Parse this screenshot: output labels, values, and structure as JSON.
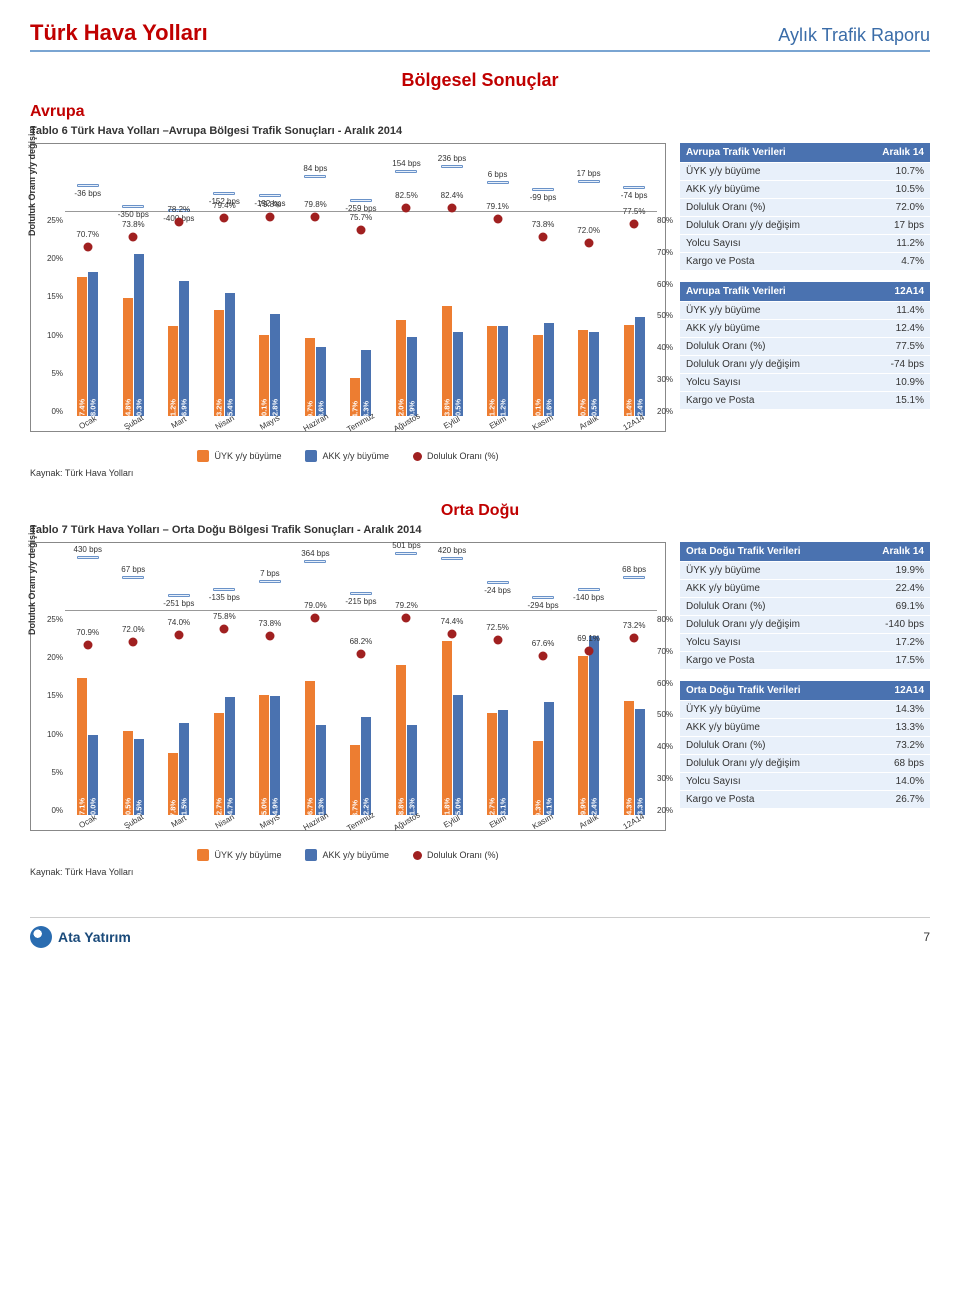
{
  "header": {
    "company": "Türk Hava Yolları",
    "report": "Aylık Trafik Raporu"
  },
  "section_title": "Bölgesel Sonuçlar",
  "source_note": "Kaynak: Türk Hava Yolları",
  "y_axis_label": "Doluluk Oranı\ny/y değişim",
  "left_ticks": [
    "25%",
    "20%",
    "15%",
    "10%",
    "5%",
    "0%"
  ],
  "right_ticks": [
    "80%",
    "70%",
    "60%",
    "50%",
    "40%",
    "30%",
    "20%"
  ],
  "months": [
    "Ocak",
    "Şubat",
    "Mart",
    "Nisan",
    "Mayıs",
    "Haziran",
    "Temmuz",
    "Ağustos",
    "Eylül",
    "Ekim",
    "Kasım",
    "Aralık",
    "12A14"
  ],
  "legend": {
    "uyk": {
      "label": "ÜYK y/y büyüme",
      "color": "#ed7d31"
    },
    "akk": {
      "label": "AKK y/y büyüme",
      "color": "#4a72b0"
    },
    "doluluk": {
      "label": "Doluluk Oranı (%)",
      "color": "#a02020"
    }
  },
  "left_axis": {
    "min": 0,
    "max": 25,
    "step": 5
  },
  "right_axis": {
    "min": 20,
    "max": 80,
    "step": 10
  },
  "bar_colors": {
    "uyk": "#ed7d31",
    "akk": "#4a72b0"
  },
  "dot_color": "#a02020",
  "bps_mark_color": "#6a92c8",
  "avrupa": {
    "region_title": "Avrupa",
    "table_title": "Tablo 6 Türk Hava Yolları –Avrupa Bölgesi Trafik Sonuçları - Aralık 2014",
    "bps": [
      -36,
      -350,
      -400,
      -152,
      -192,
      84,
      -259,
      154,
      236,
      6,
      -99,
      17,
      -74
    ],
    "doluluk_pct": [
      70.7,
      73.8,
      78.2,
      79.4,
      79.8,
      79.8,
      75.7,
      82.5,
      82.4,
      79.1,
      73.8,
      72.0,
      77.5
    ],
    "uyk": [
      17.4,
      14.8,
      11.2,
      13.2,
      10.1,
      9.7,
      4.7,
      12.0,
      13.8,
      11.2,
      10.1,
      10.7,
      11.4
    ],
    "akk": [
      18.0,
      20.3,
      16.9,
      15.4,
      12.8,
      8.6,
      8.3,
      9.9,
      10.5,
      11.2,
      11.6,
      10.5,
      12.4
    ],
    "tbl1": {
      "head_l": "Avrupa Trafik Verileri",
      "head_r": "Aralık 14",
      "rows": [
        [
          "ÜYK y/y büyüme",
          "10.7%"
        ],
        [
          "AKK y/y büyüme",
          "10.5%"
        ],
        [
          "Doluluk Oranı (%)",
          "72.0%"
        ],
        [
          "Doluluk Oranı y/y değişim",
          "17 bps"
        ],
        [
          "Yolcu Sayısı",
          "11.2%"
        ],
        [
          "Kargo ve Posta",
          "4.7%"
        ]
      ]
    },
    "tbl2": {
      "head_l": "Avrupa Trafik Verileri",
      "head_r": "12A14",
      "rows": [
        [
          "ÜYK y/y büyüme",
          "11.4%"
        ],
        [
          "AKK y/y büyüme",
          "12.4%"
        ],
        [
          "Doluluk Oranı (%)",
          "77.5%"
        ],
        [
          "Doluluk Oranı y/y değişim",
          "-74 bps"
        ],
        [
          "Yolcu Sayısı",
          "10.9%"
        ],
        [
          "Kargo ve Posta",
          "15.1%"
        ]
      ]
    }
  },
  "ortadogu": {
    "region_title": "Orta Doğu",
    "table_title": "Tablo 7 Türk Hava Yolları – Orta Doğu Bölgesi Trafik Sonuçları - Aralık 2014",
    "bps": [
      430,
      67,
      -251,
      -135,
      7,
      364,
      -215,
      501,
      420,
      -24,
      -294,
      -140,
      68
    ],
    "doluluk_pct": [
      70.9,
      72.0,
      74.0,
      75.8,
      73.8,
      79.0,
      68.2,
      79.2,
      74.4,
      72.5,
      67.6,
      69.1,
      73.2
    ],
    "uyk": [
      17.1,
      10.5,
      7.8,
      12.7,
      15.0,
      16.7,
      8.7,
      18.8,
      21.8,
      12.7,
      9.3,
      19.9,
      14.3
    ],
    "akk": [
      10.0,
      9.5,
      11.5,
      14.7,
      14.9,
      11.3,
      12.2,
      11.3,
      15.0,
      13.1,
      14.1,
      22.4,
      13.3
    ],
    "tbl1": {
      "head_l": "Orta Doğu Trafik Verileri",
      "head_r": "Aralık 14",
      "rows": [
        [
          "ÜYK y/y büyüme",
          "19.9%"
        ],
        [
          "AKK y/y büyüme",
          "22.4%"
        ],
        [
          "Doluluk Oranı (%)",
          "69.1%"
        ],
        [
          "Doluluk Oranı y/y değişim",
          "-140 bps"
        ],
        [
          "Yolcu Sayısı",
          "17.2%"
        ],
        [
          "Kargo ve Posta",
          "17.5%"
        ]
      ]
    },
    "tbl2": {
      "head_l": "Orta Doğu Trafik Verileri",
      "head_r": "12A14",
      "rows": [
        [
          "ÜYK y/y büyüme",
          "14.3%"
        ],
        [
          "AKK y/y büyüme",
          "13.3%"
        ],
        [
          "Doluluk Oranı (%)",
          "73.2%"
        ],
        [
          "Doluluk Oranı y/y değişim",
          "68 bps"
        ],
        [
          "Yolcu Sayısı",
          "14.0%"
        ],
        [
          "Kargo ve Posta",
          "26.7%"
        ]
      ]
    }
  },
  "footer": {
    "logo_text": "Ata Yatırım",
    "page_number": "7"
  }
}
